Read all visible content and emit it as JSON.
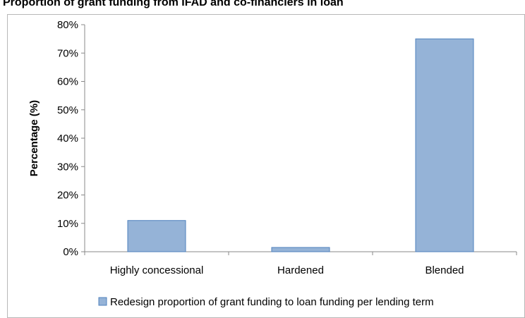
{
  "chart_data": {
    "type": "bar",
    "title": "Proportion of grant funding from IFAD and co-financiers in loan",
    "ylabel": "Percentage (%)",
    "xlabel": "",
    "categories": [
      "Highly concessional",
      "Hardened",
      "Blended"
    ],
    "series": [
      {
        "name": "Redesign proportion of grant funding to loan funding per lending term",
        "values": [
          11,
          1.5,
          75
        ],
        "color": "#95b3d7",
        "edge_color": "#4f81bd"
      }
    ],
    "y_ticks": [
      "0%",
      "10%",
      "20%",
      "30%",
      "40%",
      "50%",
      "60%",
      "70%",
      "80%"
    ],
    "ylim": [
      0,
      80
    ],
    "grid": false,
    "legend_position": "bottom"
  }
}
